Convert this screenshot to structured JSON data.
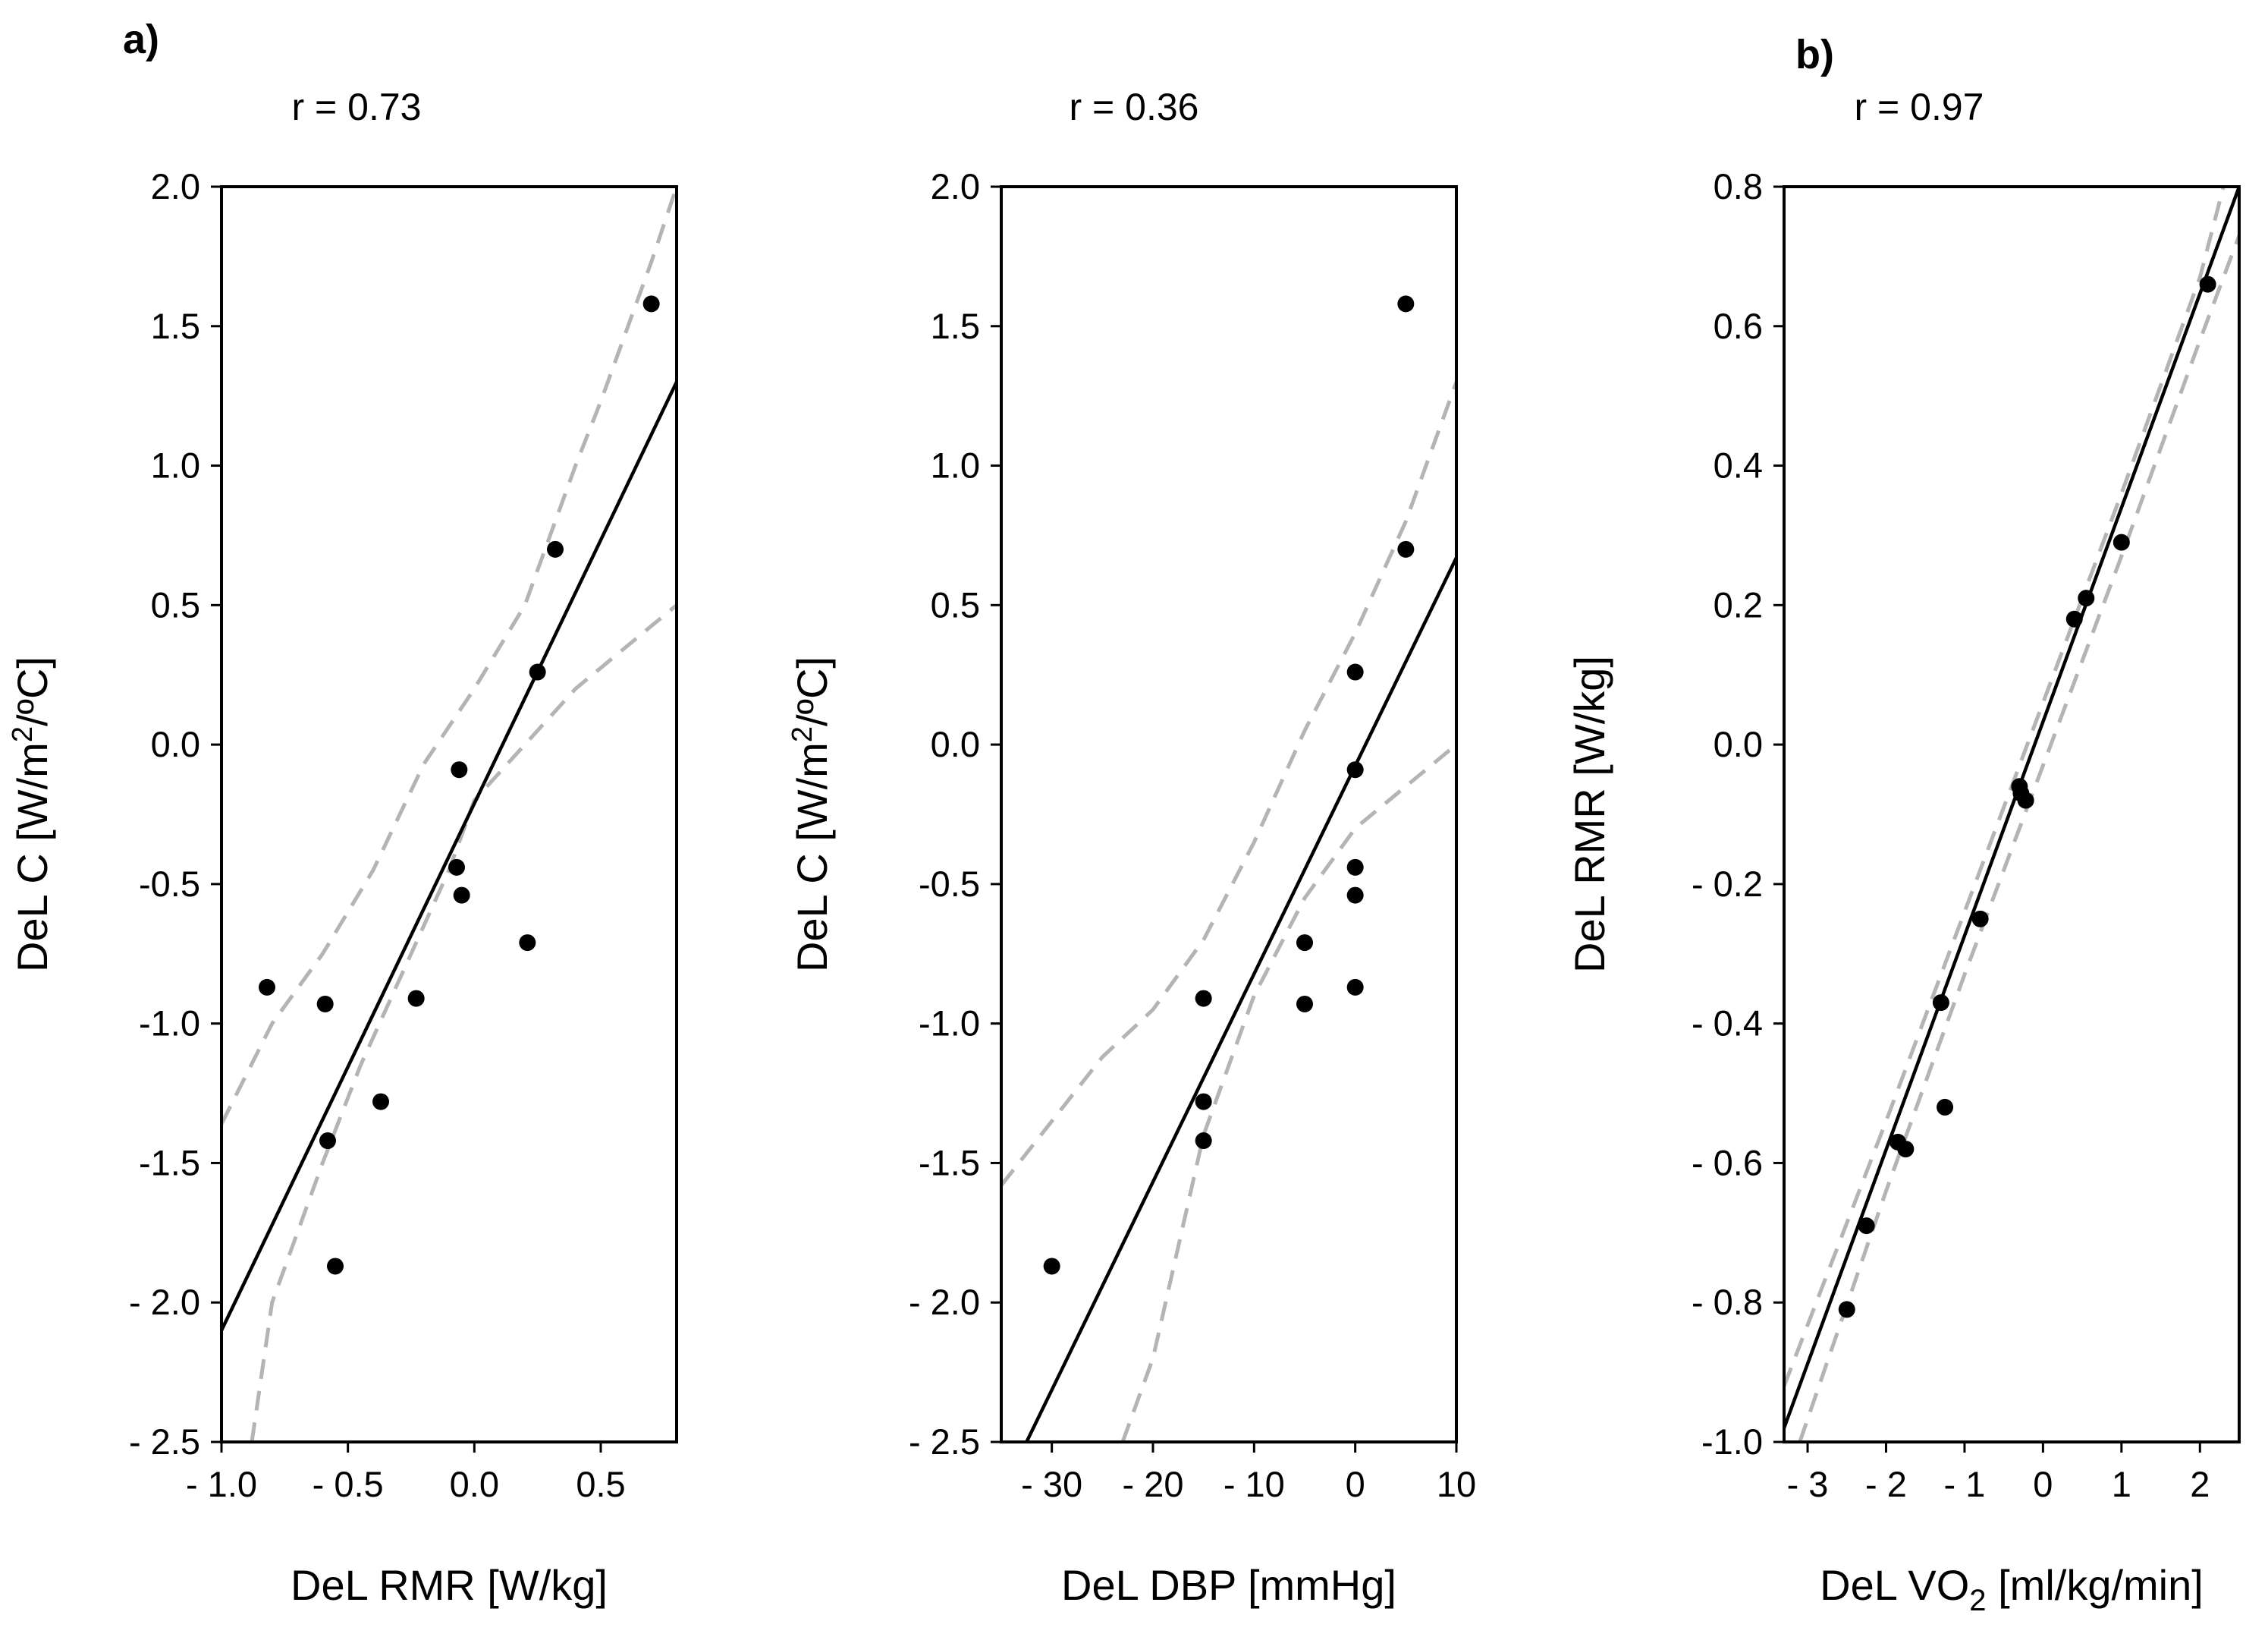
{
  "figure": {
    "panel_labels": [
      "a)",
      "b)"
    ]
  },
  "colors": {
    "axis": "#000000",
    "fit_line": "#000000",
    "confidence_band": "#b4b4b4",
    "points": "#000000"
  },
  "chart_data": [
    {
      "type": "scatter",
      "panel": "a)",
      "title": "r = 0.73",
      "xlabel": "DeL RMR [W/kg]",
      "ylabel": "DeL C [W/m²/ºC]",
      "ylabel_parts": {
        "pre": "DeL C [W/m",
        "sup": "2",
        "post": "/ºC]"
      },
      "xlim": [
        -1.0,
        0.8
      ],
      "ylim": [
        -2.5,
        2.0
      ],
      "xticks": [
        -1.0,
        -0.5,
        0.0,
        0.5
      ],
      "xtick_labels": [
        "- 1.0",
        "- 0.5",
        "0.0",
        "0.5"
      ],
      "yticks": [
        -2.5,
        -2.0,
        -1.5,
        -1.0,
        -0.5,
        0.0,
        0.5,
        1.0,
        1.5,
        2.0
      ],
      "ytick_labels": [
        "- 2.5",
        "- 2.0",
        "-1.5",
        "-1.0",
        "-0.5",
        "0.0",
        "0.5",
        "1.0",
        "1.5",
        "2.0"
      ],
      "grid": false,
      "points": [
        {
          "x": -0.82,
          "y": -0.87
        },
        {
          "x": -0.59,
          "y": -0.93
        },
        {
          "x": -0.58,
          "y": -1.42
        },
        {
          "x": -0.55,
          "y": -1.87
        },
        {
          "x": -0.37,
          "y": -1.28
        },
        {
          "x": -0.23,
          "y": -0.91
        },
        {
          "x": -0.07,
          "y": -0.44
        },
        {
          "x": -0.06,
          "y": -0.09
        },
        {
          "x": -0.05,
          "y": -0.54
        },
        {
          "x": 0.21,
          "y": -0.71
        },
        {
          "x": 0.25,
          "y": 0.26
        },
        {
          "x": 0.32,
          "y": 0.7
        },
        {
          "x": 0.7,
          "y": 1.58
        }
      ],
      "fit_line": {
        "from": [
          -1.0,
          -2.1
        ],
        "to": [
          0.8,
          1.3
        ]
      },
      "confidence_upper": [
        [
          -1.0,
          -1.36
        ],
        [
          -0.8,
          -1.0
        ],
        [
          -0.6,
          -0.75
        ],
        [
          -0.4,
          -0.45
        ],
        [
          -0.2,
          -0.07
        ],
        [
          0.0,
          0.2
        ],
        [
          0.2,
          0.5
        ],
        [
          0.3,
          0.75
        ],
        [
          0.4,
          1.0
        ],
        [
          0.5,
          1.23
        ],
        [
          0.6,
          1.48
        ],
        [
          0.7,
          1.73
        ],
        [
          0.8,
          2.0
        ]
      ],
      "confidence_lower": [
        [
          -0.88,
          -2.5
        ],
        [
          -0.8,
          -2.0
        ],
        [
          -0.6,
          -1.5
        ],
        [
          -0.45,
          -1.15
        ],
        [
          -0.3,
          -0.85
        ],
        [
          -0.1,
          -0.45
        ],
        [
          0.0,
          -0.2
        ],
        [
          0.2,
          0.0
        ],
        [
          0.4,
          0.2
        ],
        [
          0.6,
          0.35
        ],
        [
          0.8,
          0.5
        ]
      ]
    },
    {
      "type": "scatter",
      "panel": "",
      "title": "r = 0.36",
      "xlabel": "DeL DBP [mmHg]",
      "ylabel": "DeL C [W/m²/ºC]",
      "ylabel_parts": {
        "pre": "DeL C [W/m",
        "sup": "2",
        "post": "/ºC]"
      },
      "xlim": [
        -35,
        10
      ],
      "ylim": [
        -2.5,
        2.0
      ],
      "xticks": [
        -30,
        -20,
        -10,
        0,
        10
      ],
      "xtick_labels": [
        "- 30",
        "- 20",
        "- 10",
        "0",
        "10"
      ],
      "yticks": [
        -2.5,
        -2.0,
        -1.5,
        -1.0,
        -0.5,
        0.0,
        0.5,
        1.0,
        1.5,
        2.0
      ],
      "ytick_labels": [
        "- 2.5",
        "- 2.0",
        "-1.5",
        "-1.0",
        "-0.5",
        "0.0",
        "0.5",
        "1.0",
        "1.5",
        "2.0"
      ],
      "grid": false,
      "points": [
        {
          "x": -30,
          "y": -1.87
        },
        {
          "x": -15,
          "y": -0.91
        },
        {
          "x": -15,
          "y": -1.28
        },
        {
          "x": -15,
          "y": -1.42
        },
        {
          "x": -5,
          "y": -0.71
        },
        {
          "x": -5,
          "y": -0.93
        },
        {
          "x": 0,
          "y": 0.26
        },
        {
          "x": 0,
          "y": -0.09
        },
        {
          "x": 0,
          "y": -0.44
        },
        {
          "x": 0,
          "y": -0.54
        },
        {
          "x": 0,
          "y": -0.87
        },
        {
          "x": 5,
          "y": 1.58
        },
        {
          "x": 5,
          "y": 0.7
        }
      ],
      "fit_line": {
        "from": [
          -32.5,
          -2.5
        ],
        "to": [
          10,
          0.67
        ]
      },
      "confidence_upper": [
        [
          -35,
          -1.58
        ],
        [
          -30,
          -1.35
        ],
        [
          -25,
          -1.12
        ],
        [
          -20,
          -0.95
        ],
        [
          -15,
          -0.7
        ],
        [
          -10,
          -0.35
        ],
        [
          -5,
          0.05
        ],
        [
          0,
          0.4
        ],
        [
          5,
          0.8
        ],
        [
          10,
          1.3
        ]
      ],
      "confidence_lower": [
        [
          -23,
          -2.5
        ],
        [
          -20,
          -2.2
        ],
        [
          -15,
          -1.4
        ],
        [
          -10,
          -0.9
        ],
        [
          -5,
          -0.55
        ],
        [
          0,
          -0.3
        ],
        [
          5,
          -0.15
        ],
        [
          10,
          0.0
        ]
      ]
    },
    {
      "type": "scatter",
      "panel": "b)",
      "title": "r = 0.97",
      "xlabel": "DeL VO₂ [ml/kg/min]",
      "xlabel_parts": {
        "pre": "DeL VO",
        "sub": "2",
        "post": " [ml/kg/min]"
      },
      "ylabel": "DeL RMR [W/kg]",
      "xlim": [
        -3.3,
        2.5
      ],
      "ylim": [
        -1.0,
        0.8
      ],
      "xticks": [
        -3,
        -2,
        -1,
        0,
        1,
        2
      ],
      "xtick_labels": [
        "- 3",
        "- 2",
        "- 1",
        "0",
        "1",
        "2"
      ],
      "yticks": [
        -1.0,
        -0.8,
        -0.6,
        -0.4,
        -0.2,
        0.0,
        0.2,
        0.4,
        0.6,
        0.8
      ],
      "ytick_labels": [
        "-1.0",
        "- 0.8",
        "- 0.6",
        "- 0.4",
        "- 0.2",
        "0.0",
        "0.2",
        "0.4",
        "0.6",
        "0.8"
      ],
      "grid": false,
      "points": [
        {
          "x": -2.5,
          "y": -0.81
        },
        {
          "x": -2.25,
          "y": -0.69
        },
        {
          "x": -1.85,
          "y": -0.57
        },
        {
          "x": -1.75,
          "y": -0.58
        },
        {
          "x": -1.3,
          "y": -0.37
        },
        {
          "x": -1.25,
          "y": -0.52
        },
        {
          "x": -0.8,
          "y": -0.25
        },
        {
          "x": -0.3,
          "y": -0.06
        },
        {
          "x": -0.28,
          "y": -0.07
        },
        {
          "x": -0.22,
          "y": -0.08
        },
        {
          "x": 0.4,
          "y": 0.18
        },
        {
          "x": 0.55,
          "y": 0.21
        },
        {
          "x": 1.0,
          "y": 0.29
        },
        {
          "x": 2.1,
          "y": 0.66
        }
      ],
      "fit_line": {
        "from": [
          -3.3,
          -0.98
        ],
        "to": [
          2.5,
          0.8
        ]
      },
      "confidence_upper": [
        [
          -3.3,
          -0.92
        ],
        [
          -2.0,
          -0.54
        ],
        [
          -1.0,
          -0.24
        ],
        [
          0.0,
          0.06
        ],
        [
          1.0,
          0.36
        ],
        [
          2.0,
          0.67
        ],
        [
          2.3,
          0.8
        ]
      ],
      "confidence_lower": [
        [
          -3.1,
          -1.0
        ],
        [
          -2.0,
          -0.64
        ],
        [
          -1.0,
          -0.33
        ],
        [
          0.0,
          -0.03
        ],
        [
          1.0,
          0.27
        ],
        [
          2.0,
          0.58
        ],
        [
          2.5,
          0.73
        ]
      ]
    }
  ]
}
